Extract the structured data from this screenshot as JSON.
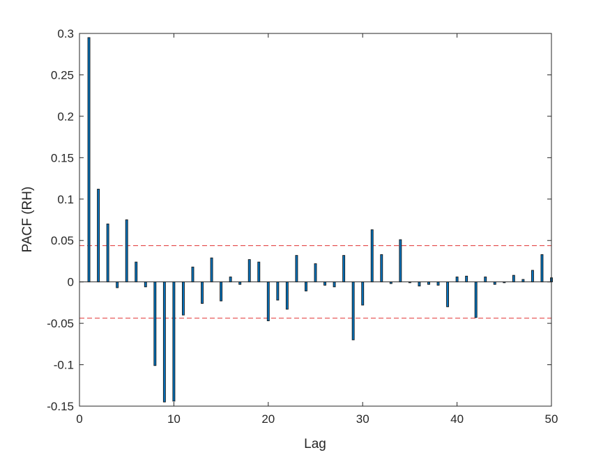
{
  "chart_data": {
    "type": "bar",
    "title": "",
    "xlabel": "Lag",
    "ylabel": "PACF (RH)",
    "xlim": [
      0,
      50
    ],
    "ylim": [
      -0.15,
      0.3
    ],
    "xticks": [
      "0",
      "10",
      "20",
      "30",
      "40",
      "50"
    ],
    "yticks": [
      "-0.15",
      "-0.1",
      "-0.05",
      "0",
      "0.05",
      "0.1",
      "0.15",
      "0.2",
      "0.25",
      "0.3"
    ],
    "xtick_values": [
      0,
      10,
      20,
      30,
      40,
      50
    ],
    "ytick_values": [
      -0.15,
      -0.1,
      -0.05,
      0,
      0.05,
      0.1,
      0.15,
      0.2,
      0.25,
      0.3
    ],
    "confidence_bounds": [
      0.0438,
      -0.0438
    ],
    "grid": false,
    "bar_color": "#0072BD",
    "bound_color": "#E03030",
    "lags": [
      1,
      2,
      3,
      4,
      5,
      6,
      7,
      8,
      9,
      10,
      11,
      12,
      13,
      14,
      15,
      16,
      17,
      18,
      19,
      20,
      21,
      22,
      23,
      24,
      25,
      26,
      27,
      28,
      29,
      30,
      31,
      32,
      33,
      34,
      35,
      36,
      37,
      38,
      39,
      40,
      41,
      42,
      43,
      44,
      45,
      46,
      47,
      48,
      49,
      50
    ],
    "values": [
      0.295,
      0.112,
      0.07,
      -0.007,
      0.075,
      0.024,
      -0.006,
      -0.101,
      -0.145,
      -0.144,
      -0.04,
      0.018,
      -0.026,
      0.029,
      -0.023,
      0.006,
      -0.003,
      0.027,
      0.024,
      -0.047,
      -0.022,
      -0.033,
      0.032,
      -0.011,
      0.022,
      -0.004,
      -0.006,
      0.032,
      -0.07,
      -0.028,
      0.063,
      0.033,
      -0.002,
      0.051,
      -0.001,
      -0.005,
      -0.003,
      -0.004,
      -0.03,
      0.006,
      0.007,
      -0.043,
      0.006,
      -0.003,
      -0.001,
      0.008,
      0.003,
      0.014,
      0.033,
      0.005
    ]
  }
}
